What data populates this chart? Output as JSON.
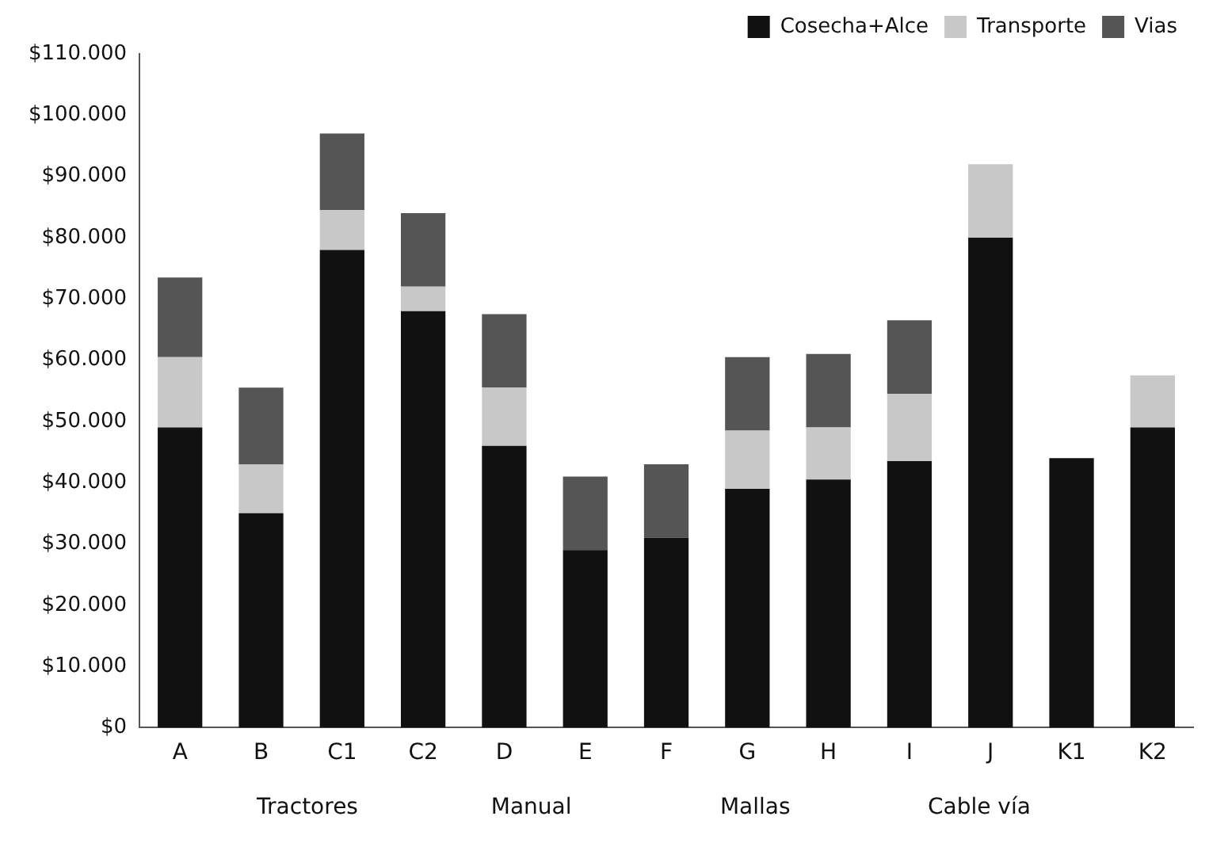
{
  "chart_data": {
    "type": "bar",
    "stacked": true,
    "categories": [
      "A",
      "B",
      "C1",
      "C2",
      "D",
      "E",
      "F",
      "G",
      "H",
      "I",
      "J",
      "K1",
      "K2"
    ],
    "series": [
      {
        "name": "Cosecha+Alce",
        "color": "#111111",
        "values": [
          49000,
          35000,
          78000,
          68000,
          46000,
          29000,
          31000,
          39000,
          40500,
          43500,
          80000,
          44000,
          49000
        ]
      },
      {
        "name": "Transporte",
        "color": "#c8c8c8",
        "values": [
          11500,
          8000,
          6500,
          4000,
          9500,
          0,
          0,
          9500,
          8500,
          11000,
          12000,
          0,
          8500
        ]
      },
      {
        "name": "Vias",
        "color": "#555555",
        "values": [
          13000,
          12500,
          12500,
          12000,
          12000,
          12000,
          12000,
          12000,
          12000,
          12000,
          0,
          0,
          0
        ]
      }
    ],
    "ylim": [
      0,
      110000
    ],
    "yticks": [
      {
        "value": 0,
        "label": "$0"
      },
      {
        "value": 10000,
        "label": "$10.000"
      },
      {
        "value": 20000,
        "label": "$20.000"
      },
      {
        "value": 30000,
        "label": "$30.000"
      },
      {
        "value": 40000,
        "label": "$40.000"
      },
      {
        "value": 50000,
        "label": "$50.000"
      },
      {
        "value": 60000,
        "label": "$60.000"
      },
      {
        "value": 70000,
        "label": "$70.000"
      },
      {
        "value": 80000,
        "label": "$80.000"
      },
      {
        "value": 90000,
        "label": "$90.000"
      },
      {
        "value": 100000,
        "label": "$100.000"
      },
      {
        "value": 110000,
        "label": "$110.000"
      }
    ],
    "annotations": [
      "Tractores",
      "Manual",
      "Mallas",
      "Cable vía"
    ],
    "grid": false,
    "legend": "top right"
  }
}
